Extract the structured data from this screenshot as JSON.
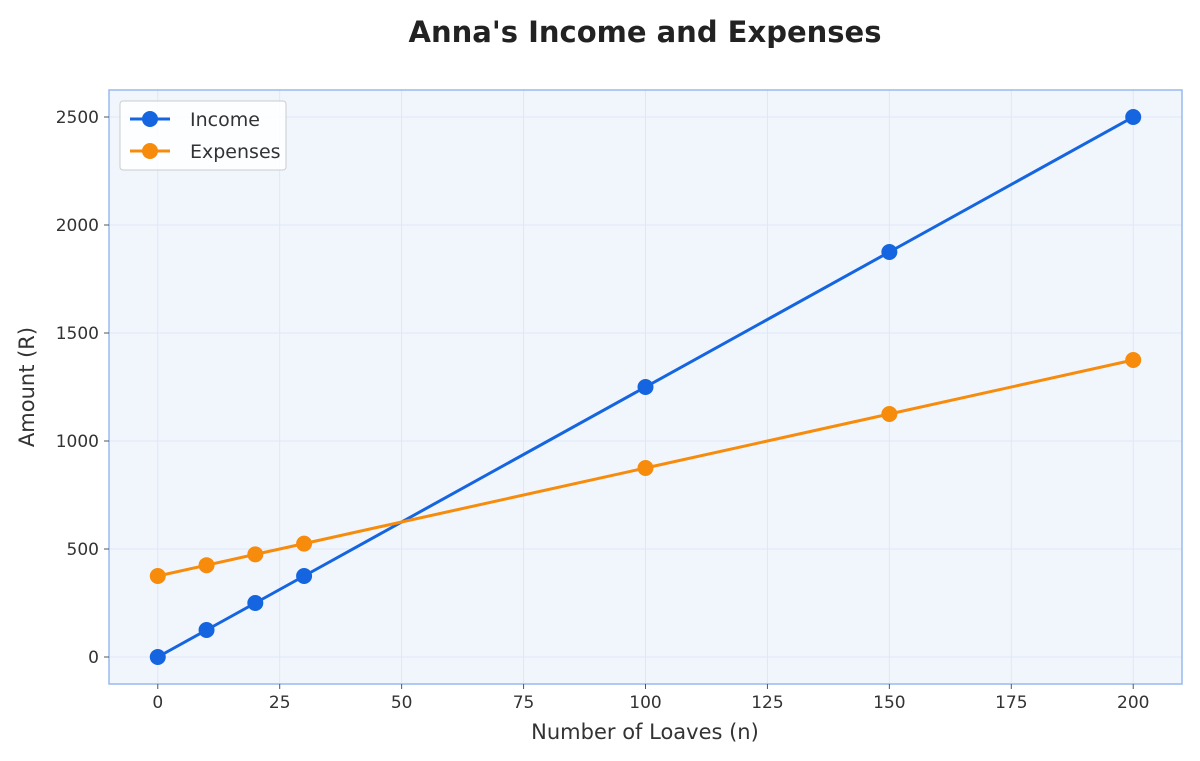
{
  "chart_data": {
    "type": "line",
    "title": "Anna's Income and Expenses",
    "xlabel": "Number of Loaves (n)",
    "ylabel": "Amount (R)",
    "xlim": [
      -10,
      210
    ],
    "ylim": [
      -125,
      2625
    ],
    "xticks": [
      0,
      25,
      50,
      75,
      100,
      125,
      150,
      175,
      200
    ],
    "yticks": [
      0,
      500,
      1000,
      1500,
      2000,
      2500
    ],
    "grid": true,
    "legend_position": "top-left",
    "series": [
      {
        "name": "Income",
        "color": "#1565e0",
        "x": [
          0,
          10,
          20,
          30,
          100,
          150,
          200
        ],
        "y": [
          0,
          125,
          250,
          375,
          1250,
          1875,
          2500
        ]
      },
      {
        "name": "Expenses",
        "color": "#f78c0c",
        "x": [
          0,
          10,
          20,
          30,
          100,
          150,
          200
        ],
        "y": [
          375,
          425,
          475,
          525,
          875,
          1125,
          1375
        ]
      }
    ]
  },
  "colors": {
    "plot_background": "#f1f6fd",
    "plot_border": "#97baee",
    "grid": "#dfe7f7"
  }
}
